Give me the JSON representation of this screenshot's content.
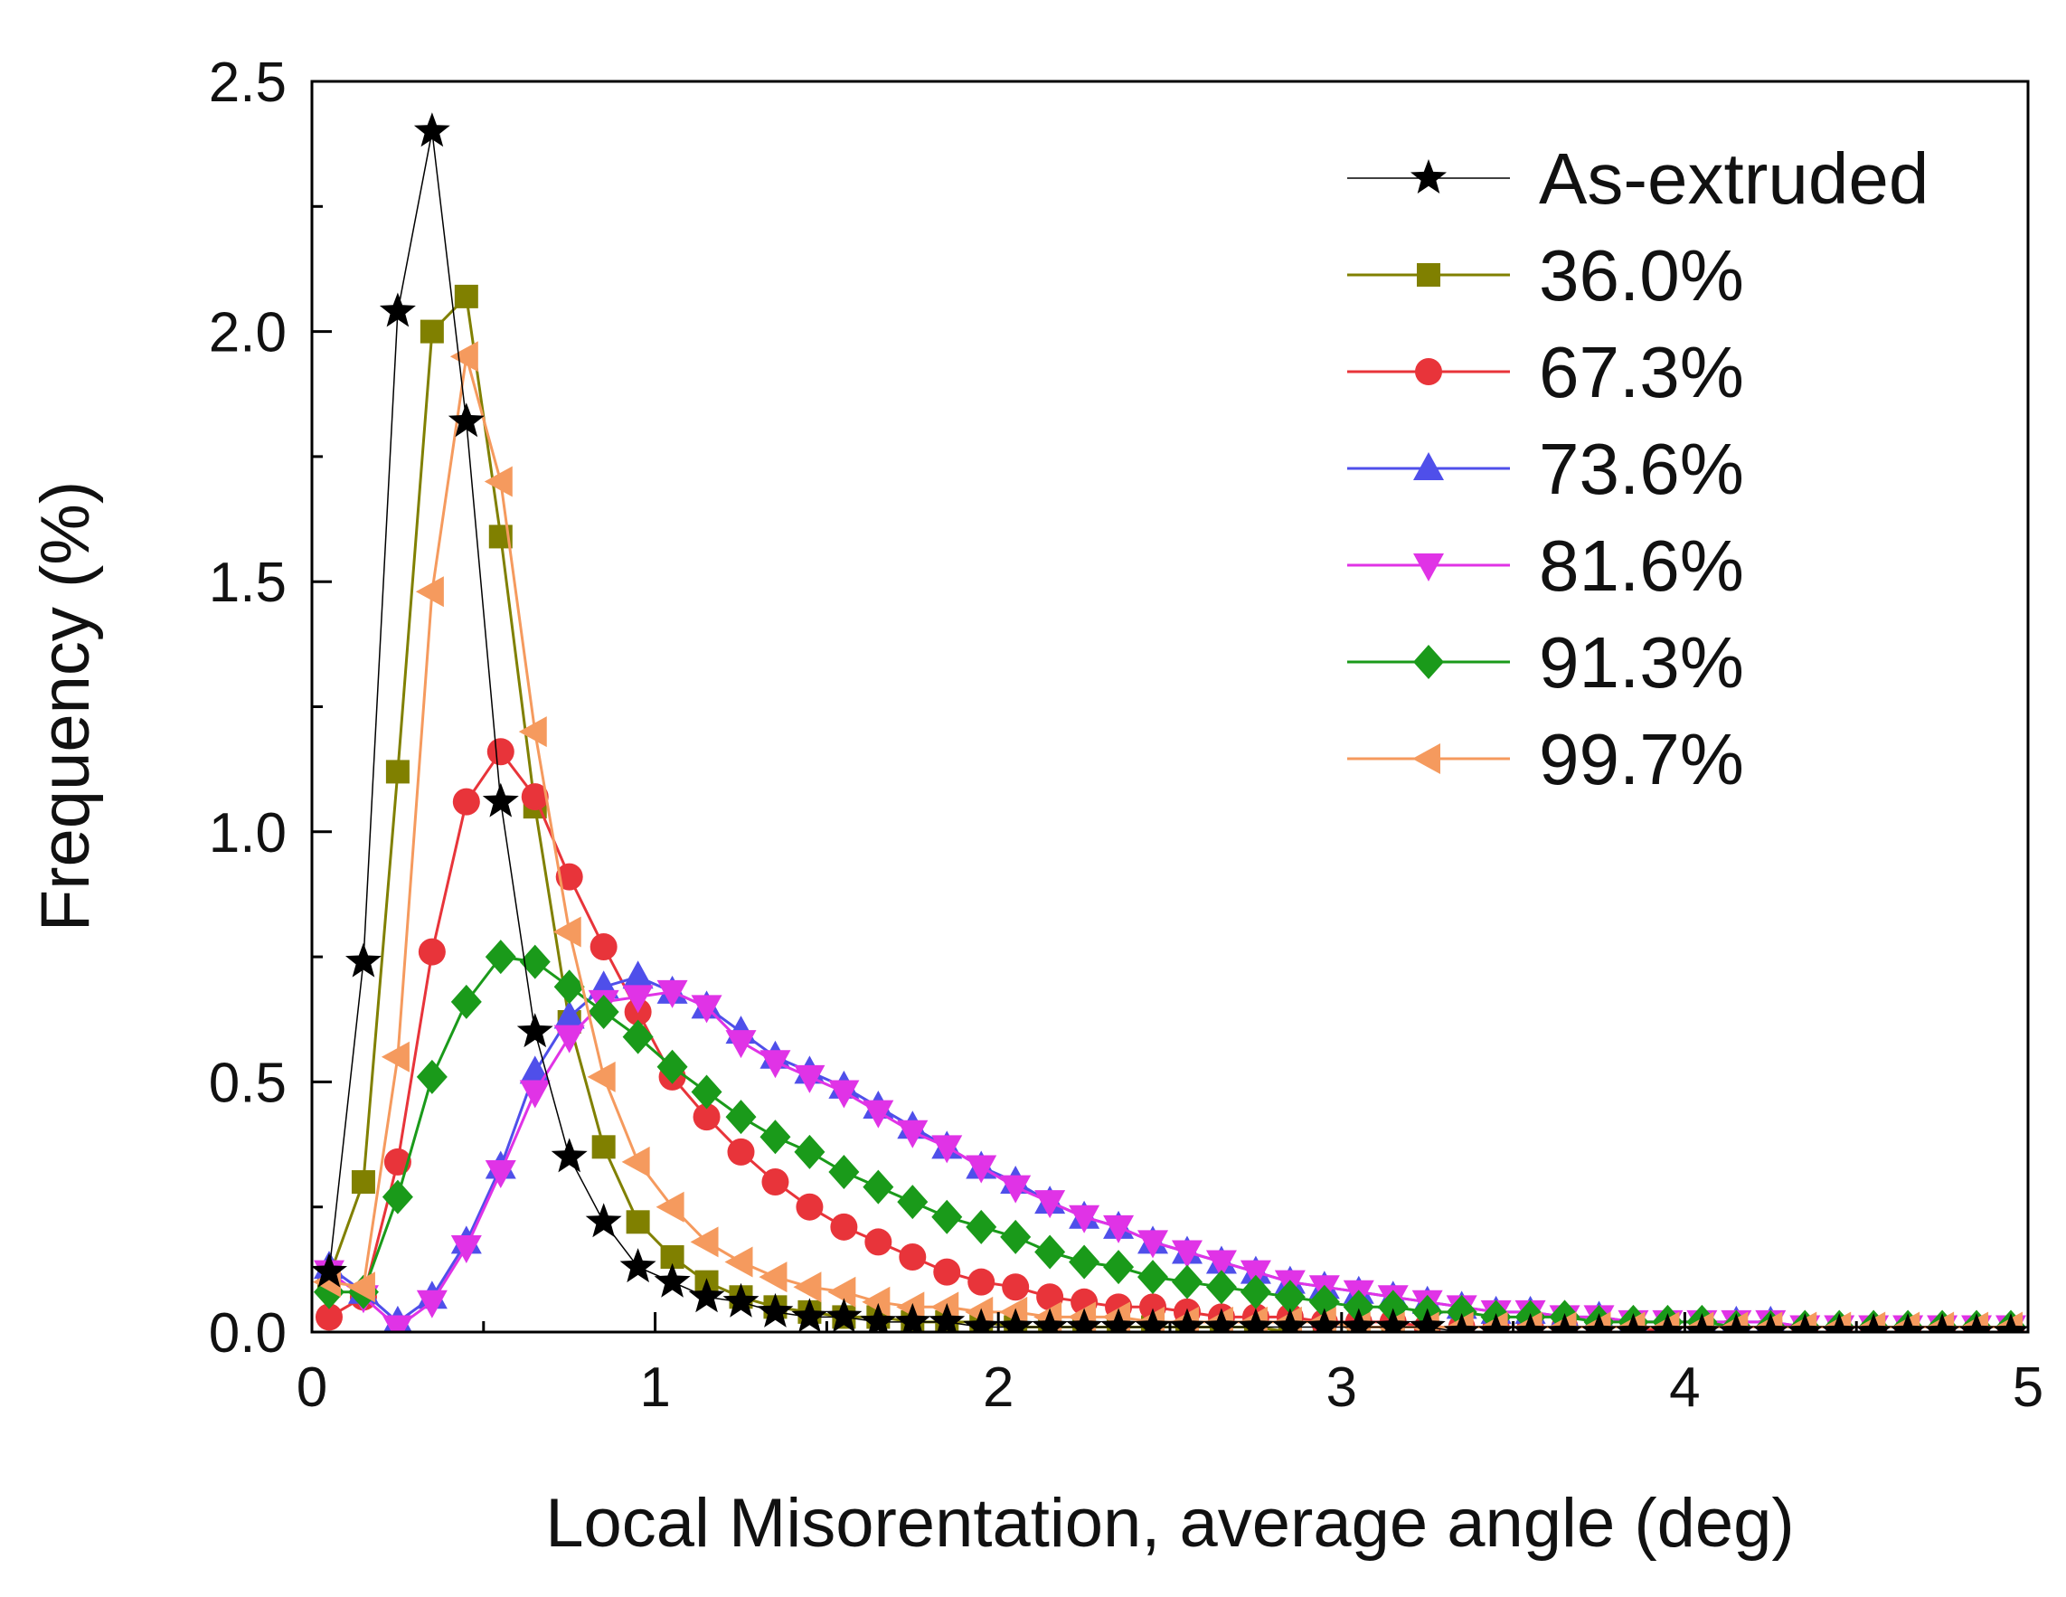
{
  "chart_data": {
    "type": "line",
    "title": "",
    "xlabel": "Local Misorentation, average angle  (deg)",
    "ylabel": "Frequency (%)",
    "xlim": [
      0,
      5
    ],
    "ylim": [
      0,
      2.5
    ],
    "xticks": [
      0,
      1,
      2,
      3,
      4,
      5
    ],
    "yticks": [
      0.0,
      0.5,
      1.0,
      1.5,
      2.0,
      2.5
    ],
    "xtick_labels": [
      "0",
      "1",
      "2",
      "3",
      "4",
      "5"
    ],
    "ytick_labels": [
      "0.0",
      "0.5",
      "1.0",
      "1.5",
      "2.0",
      "2.5"
    ],
    "grid": false,
    "legend_position": "top-right",
    "x": [
      0.05,
      0.15,
      0.25,
      0.35,
      0.45,
      0.55,
      0.65,
      0.75,
      0.85,
      0.95,
      1.05,
      1.15,
      1.25,
      1.35,
      1.45,
      1.55,
      1.65,
      1.75,
      1.85,
      1.95,
      2.05,
      2.15,
      2.25,
      2.35,
      2.45,
      2.55,
      2.65,
      2.75,
      2.85,
      2.95,
      3.05,
      3.15,
      3.25,
      3.35,
      3.45,
      3.55,
      3.65,
      3.75,
      3.85,
      3.95,
      4.05,
      4.15,
      4.25,
      4.35,
      4.45,
      4.55,
      4.65,
      4.75,
      4.85,
      4.95
    ],
    "series": [
      {
        "name": "As-extruded",
        "color": "#000000",
        "marker": "star",
        "values": [
          0.12,
          0.74,
          2.04,
          2.4,
          1.82,
          1.06,
          0.6,
          0.35,
          0.22,
          0.13,
          0.1,
          0.07,
          0.06,
          0.04,
          0.03,
          0.03,
          0.02,
          0.02,
          0.02,
          0.01,
          0.01,
          0.01,
          0.01,
          0.01,
          0.01,
          0.01,
          0.01,
          0.01,
          0.01,
          0.01,
          0.01,
          0.01,
          0.01,
          0.0,
          0.0,
          0.0,
          0.0,
          0.0,
          0.0,
          0.0,
          0.0,
          0.0,
          0.0,
          0.0,
          0.0,
          0.0,
          0.0,
          0.0,
          0.0,
          0.0
        ]
      },
      {
        "name": "36.0%",
        "color": "#808000",
        "marker": "square",
        "values": [
          0.11,
          0.3,
          1.12,
          2.0,
          2.07,
          1.59,
          1.05,
          0.62,
          0.37,
          0.22,
          0.15,
          0.1,
          0.07,
          0.05,
          0.04,
          0.03,
          0.03,
          0.02,
          0.02,
          0.02,
          0.01,
          0.01,
          0.01,
          0.01,
          0.01,
          0.01,
          0.01,
          0.01,
          0.0,
          0.0,
          0.0,
          0.0,
          0.0,
          0.0,
          0.0,
          0.0,
          0.0,
          0.0,
          0.0,
          0.0,
          0.0,
          0.0,
          0.0,
          0.0,
          0.0,
          0.0,
          0.0,
          0.0,
          0.0,
          0.0
        ]
      },
      {
        "name": "67.3%",
        "color": "#e8343a",
        "marker": "circle",
        "values": [
          0.03,
          0.07,
          0.34,
          0.76,
          1.06,
          1.16,
          1.07,
          0.91,
          0.77,
          0.64,
          0.51,
          0.43,
          0.36,
          0.3,
          0.25,
          0.21,
          0.18,
          0.15,
          0.12,
          0.1,
          0.09,
          0.07,
          0.06,
          0.05,
          0.05,
          0.04,
          0.03,
          0.03,
          0.03,
          0.02,
          0.02,
          0.02,
          0.01,
          0.01,
          0.01,
          0.01,
          0.01,
          0.01,
          0.01,
          0.0,
          0.0,
          0.0,
          0.0,
          0.0,
          0.0,
          0.0,
          0.0,
          0.0,
          0.0,
          0.0
        ]
      },
      {
        "name": "73.6%",
        "color": "#4f4fea",
        "marker": "triangle-up",
        "values": [
          0.13,
          0.08,
          0.02,
          0.07,
          0.18,
          0.33,
          0.52,
          0.63,
          0.69,
          0.71,
          0.68,
          0.65,
          0.6,
          0.55,
          0.52,
          0.49,
          0.45,
          0.41,
          0.37,
          0.33,
          0.3,
          0.26,
          0.23,
          0.21,
          0.18,
          0.16,
          0.14,
          0.12,
          0.1,
          0.09,
          0.08,
          0.07,
          0.06,
          0.05,
          0.04,
          0.04,
          0.03,
          0.03,
          0.02,
          0.02,
          0.02,
          0.02,
          0.02,
          0.01,
          0.01,
          0.01,
          0.01,
          0.01,
          0.01,
          0.01
        ]
      },
      {
        "name": "81.6%",
        "color": "#e033e6",
        "marker": "triangle-down",
        "values": [
          0.12,
          0.07,
          0.01,
          0.06,
          0.17,
          0.32,
          0.48,
          0.59,
          0.66,
          0.67,
          0.68,
          0.65,
          0.58,
          0.54,
          0.51,
          0.48,
          0.44,
          0.4,
          0.37,
          0.33,
          0.29,
          0.26,
          0.23,
          0.21,
          0.18,
          0.16,
          0.14,
          0.12,
          0.1,
          0.09,
          0.08,
          0.07,
          0.06,
          0.05,
          0.04,
          0.04,
          0.03,
          0.03,
          0.02,
          0.02,
          0.02,
          0.02,
          0.02,
          0.01,
          0.01,
          0.01,
          0.01,
          0.01,
          0.01,
          0.01
        ]
      },
      {
        "name": "91.3%",
        "color": "#1a9a1a",
        "marker": "diamond",
        "values": [
          0.08,
          0.08,
          0.27,
          0.51,
          0.66,
          0.75,
          0.74,
          0.69,
          0.64,
          0.59,
          0.53,
          0.48,
          0.43,
          0.39,
          0.36,
          0.32,
          0.29,
          0.26,
          0.23,
          0.21,
          0.19,
          0.16,
          0.14,
          0.13,
          0.11,
          0.1,
          0.09,
          0.08,
          0.07,
          0.06,
          0.05,
          0.05,
          0.04,
          0.04,
          0.03,
          0.03,
          0.03,
          0.02,
          0.02,
          0.02,
          0.02,
          0.01,
          0.01,
          0.01,
          0.01,
          0.01,
          0.01,
          0.01,
          0.01,
          0.01
        ]
      },
      {
        "name": "99.7%",
        "color": "#f59a5e",
        "marker": "triangle-left",
        "values": [
          0.1,
          0.09,
          0.55,
          1.48,
          1.95,
          1.7,
          1.2,
          0.8,
          0.51,
          0.34,
          0.25,
          0.18,
          0.14,
          0.11,
          0.09,
          0.08,
          0.06,
          0.05,
          0.05,
          0.04,
          0.04,
          0.03,
          0.03,
          0.03,
          0.02,
          0.02,
          0.02,
          0.02,
          0.02,
          0.02,
          0.01,
          0.01,
          0.01,
          0.01,
          0.01,
          0.01,
          0.01,
          0.01,
          0.01,
          0.01,
          0.01,
          0.01,
          0.01,
          0.01,
          0.01,
          0.01,
          0.01,
          0.01,
          0.01,
          0.01
        ]
      }
    ]
  }
}
